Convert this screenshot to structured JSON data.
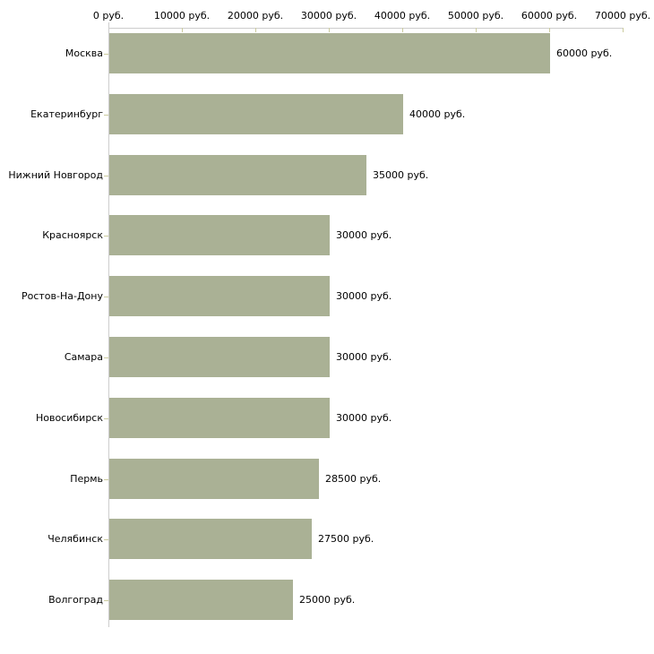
{
  "chart_data": {
    "type": "bar",
    "orientation": "horizontal",
    "title": "",
    "xlabel": "",
    "ylabel": "",
    "categories": [
      "Москва",
      "Екатеринбург",
      "Нижний Новгород",
      "Красноярск",
      "Ростов-На-Дону",
      "Самара",
      "Новосибирск",
      "Пермь",
      "Челябинск",
      "Волгоград"
    ],
    "values": [
      60000,
      40000,
      35000,
      30000,
      30000,
      30000,
      30000,
      28500,
      27500,
      25000
    ],
    "value_labels": [
      "60000 руб.",
      "40000 руб.",
      "35000 руб.",
      "30000 руб.",
      "30000 руб.",
      "30000 руб.",
      "30000 руб.",
      "28500 руб.",
      "27500 руб.",
      "25000 руб."
    ],
    "xlim": [
      0,
      70000
    ],
    "x_tick_step": 10000,
    "x_tick_labels": [
      "0 руб.",
      "10000 руб.",
      "20000 руб.",
      "30000 руб.",
      "40000 руб.",
      "50000 руб.",
      "60000 руб.",
      "70000 руб."
    ],
    "grid": false,
    "legend_position": "none",
    "colors": {
      "bar": "#aab195",
      "axis_line": "#cdcdcd",
      "tick_mark": "#cbcb9e",
      "text": "#000000",
      "background": "#ffffff"
    }
  }
}
